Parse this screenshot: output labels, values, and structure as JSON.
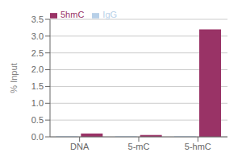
{
  "chart_data": {
    "type": "bar",
    "ylabel": "% Input",
    "categories": [
      "DNA",
      "5-mC",
      "5-hmC"
    ],
    "series": [
      {
        "name": "IgG",
        "color": "#b8d0e8",
        "values": [
          0.02,
          0.02,
          0.02
        ]
      },
      {
        "name": "5hmC",
        "color": "#993366",
        "values": [
          0.1,
          0.055,
          3.2
        ]
      }
    ],
    "ylim": [
      0,
      3.5
    ],
    "yticks": [
      {
        "value": 0,
        "label": "0.0"
      },
      0.5,
      {
        "value": 1.0,
        "label": "1.0"
      },
      1.5,
      {
        "value": 2.0,
        "label": "2.0"
      },
      2.5,
      {
        "value": 3.0,
        "label": "3.0"
      },
      3.5
    ],
    "grid": true,
    "legend": "upper left"
  }
}
